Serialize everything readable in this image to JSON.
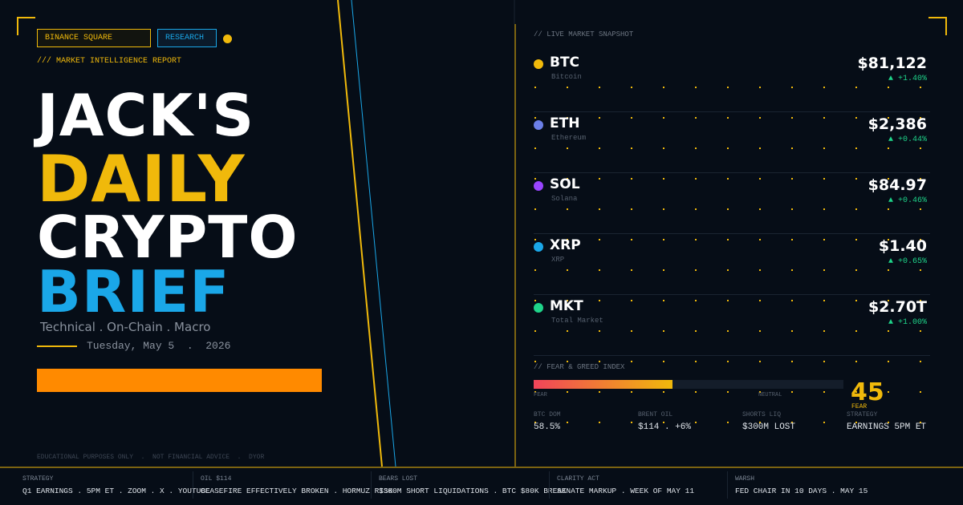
{
  "header": {
    "tags": [
      "BINANCE SQUARE",
      "RESEARCH"
    ],
    "kicker": "/// MARKET INTELLIGENCE REPORT"
  },
  "title": {
    "lines": [
      "JACK'S",
      "DAILY",
      "CRYPTO",
      "BRIEF"
    ]
  },
  "subtitle": "Technical . On-Chain . Macro",
  "date": "Tuesday, May 5  .  2026",
  "disclaimer": "EDUCATIONAL PURPOSES ONLY  .  NOT FINANCIAL ADVICE  .  DYOR",
  "snapshot": {
    "label": "// LIVE MARKET SNAPSHOT",
    "assets": [
      {
        "symbol": "BTC",
        "name": "Bitcoin",
        "price": "$81,122",
        "change": "▲ +1.40%",
        "color": "#f0b90b"
      },
      {
        "symbol": "ETH",
        "name": "Ethereum",
        "price": "$2,386",
        "change": "▲ +0.44%",
        "color": "#6b7fe8"
      },
      {
        "symbol": "SOL",
        "name": "Solana",
        "price": "$84.97",
        "change": "▲ +0.46%",
        "color": "#9945ff"
      },
      {
        "symbol": "XRP",
        "name": "XRP",
        "price": "$1.40",
        "change": "▲ +0.65%",
        "color": "#1aa7e8"
      },
      {
        "symbol": "MKT",
        "name": "Total Market",
        "price": "$2.70T",
        "change": "▲ +1.00%",
        "color": "#1fd48a"
      }
    ]
  },
  "fear_greed": {
    "label": "// FEAR & GREED INDEX",
    "scale": [
      "FEAR",
      "NEUTRAL"
    ],
    "value": 45,
    "value_label": "FEAR",
    "stats": [
      {
        "label": "BTC DOM",
        "value": "58.5%"
      },
      {
        "label": "BRENT OIL",
        "value": "$114 . +6%"
      },
      {
        "label": "SHORTS LIQ",
        "value": "$300M LOST"
      },
      {
        "label": "STRATEGY",
        "value": "EARNINGS 5PM ET"
      }
    ]
  },
  "ticker": [
    {
      "label": "STRATEGY",
      "text": "Q1 EARNINGS . 5PM ET . ZOOM . X . YOUTUBE"
    },
    {
      "label": "OIL $114",
      "text": "CEASEFIRE EFFECTIVELY BROKEN . HORMUZ RISK"
    },
    {
      "label": "BEARS LOST",
      "text": "$300M SHORT LIQUIDATIONS . BTC $80K BREAK"
    },
    {
      "label": "CLARITY ACT",
      "text": "SENATE MARKUP . WEEK OF MAY 11"
    },
    {
      "label": "WARSH",
      "text": "FED CHAIR IN 10 DAYS . MAY 15"
    }
  ]
}
